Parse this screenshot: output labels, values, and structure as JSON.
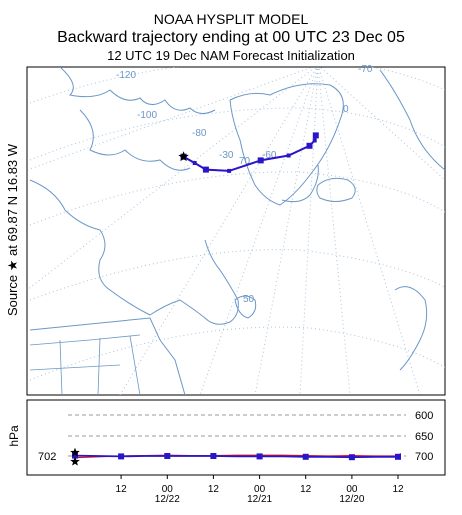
{
  "header": {
    "line1": "NOAA HYSPLIT MODEL",
    "line2": "Backward trajectory ending at 00 UTC 23 Dec 05",
    "line3": "12 UTC 19 Dec     NAM  Forecast Initialization"
  },
  "side_label": "Source ★ at   69.87 N   16.83 W",
  "colors": {
    "trajectory": "#2a16c8",
    "secondary_trajectory": "#e01010",
    "map": "#6b97c7",
    "grid": "#aac3e0"
  },
  "chart_data": [
    {
      "type": "line",
      "panel": "map",
      "graticule_labels": [
        "-120",
        "-100",
        "-80",
        "-70",
        "-60",
        "-40",
        "-30",
        "0",
        "50",
        "70"
      ],
      "source_marker": "star",
      "series": [
        {
          "marker": "square",
          "points": [
            {
              "lon": -16.83,
              "lat": 69.87
            },
            {
              "lon": -17.5,
              "lat": 68.4
            },
            {
              "lon": -21.0,
              "lat": 66.8
            },
            {
              "lon": -33.0,
              "lat": 62.8
            },
            {
              "lon": -46.0,
              "lat": 58.2
            },
            {
              "lon": -55.0,
              "lat": 50.5
            },
            {
              "lon": -62.0,
              "lat": 46.2
            },
            {
              "lon": -66.5,
              "lat": 45.0
            },
            {
              "lon": -70.7,
              "lat": 43.5
            }
          ]
        }
      ]
    },
    {
      "type": "line",
      "panel": "vertical",
      "ylabel": "hPa",
      "y_ticks": [
        "600",
        "650",
        "700"
      ],
      "start_label": "702",
      "x_tick_labels": [
        "12",
        "00",
        "12",
        "00",
        "12",
        "00",
        "12"
      ],
      "x_date_labels": [
        "12/22",
        "12/21",
        "12/20"
      ],
      "x_hours_before_end": [
        0,
        6,
        12,
        18,
        24,
        30,
        36,
        42,
        48,
        54,
        60,
        66,
        72,
        78,
        84
      ],
      "series": [
        {
          "name": "",
          "color": "blue",
          "pressure_hpa": [
            702,
            702,
            703,
            702,
            702,
            701,
            701,
            701,
            700,
            700,
            700,
            700,
            701,
            700,
            699
          ]
        },
        {
          "name": "",
          "color": "red",
          "pressure_hpa": [
            700,
            700,
            699,
            700,
            699,
            698,
            698,
            698,
            699,
            699,
            698,
            699,
            700,
            702,
            704
          ]
        }
      ]
    }
  ]
}
